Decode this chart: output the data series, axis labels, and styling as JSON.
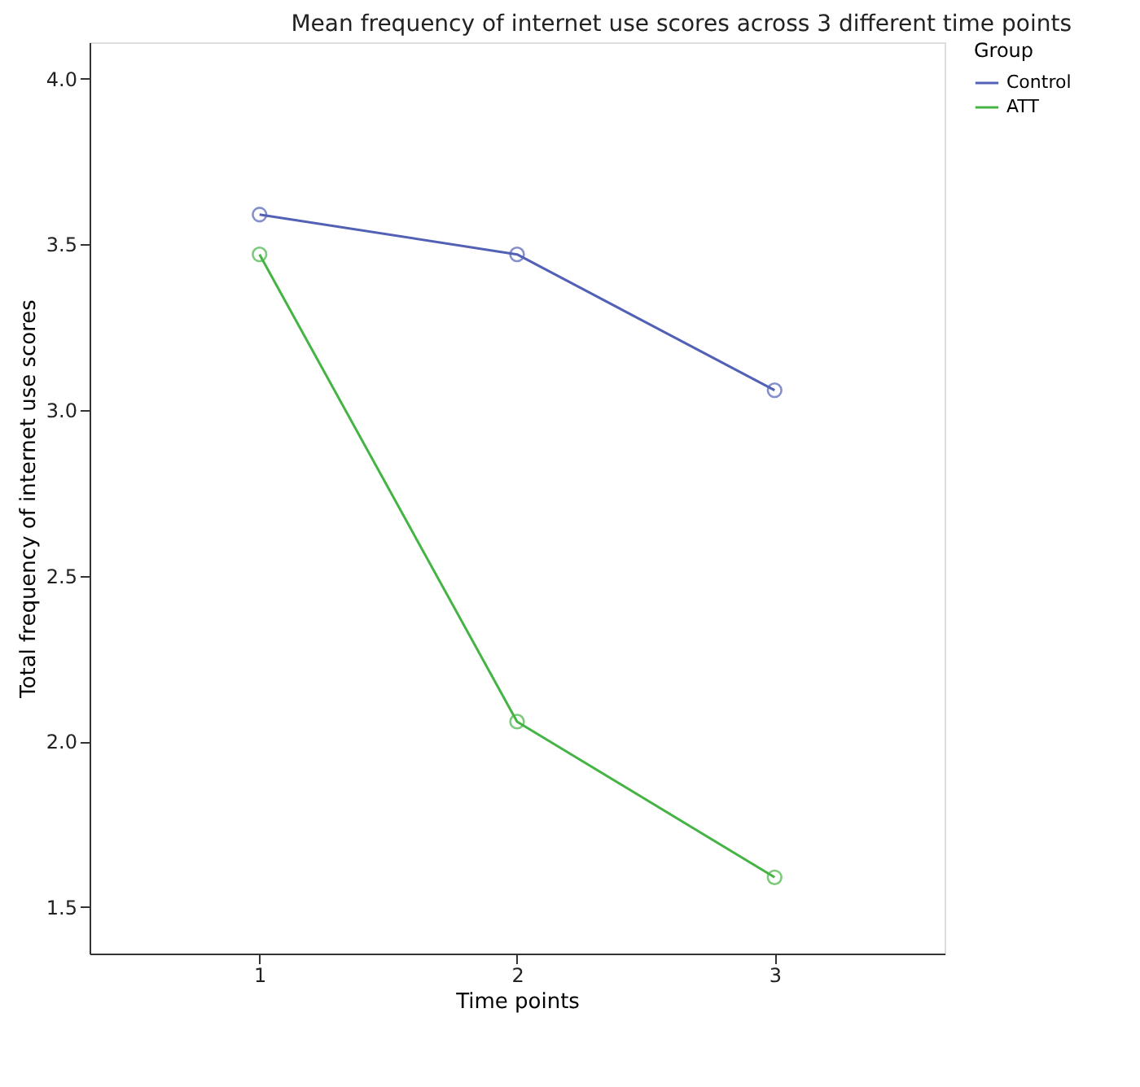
{
  "chart_data": {
    "type": "line",
    "title": "Mean frequency of internet use scores across 3 different time points",
    "xlabel": "Time points",
    "ylabel": "Total frequency of internet use scores",
    "legend_title": "Group",
    "x": [
      1,
      2,
      3
    ],
    "xlim": [
      0.34,
      3.66
    ],
    "xticks": [
      1,
      2,
      3
    ],
    "ylim": [
      1.36,
      4.11
    ],
    "yticks": [
      {
        "value": 1.5,
        "label": "1.5"
      },
      {
        "value": 2.0,
        "label": "2.0"
      },
      {
        "value": 2.5,
        "label": "2.5"
      },
      {
        "value": 3.0,
        "label": "3.0"
      },
      {
        "value": 3.5,
        "label": "3.5"
      },
      {
        "value": 4.0,
        "label": "4.0"
      }
    ],
    "series": [
      {
        "name": "Control",
        "color": "#5261b5",
        "values": [
          3.59,
          3.47,
          3.06
        ]
      },
      {
        "name": "ATT",
        "color": "#45b445",
        "values": [
          3.47,
          2.06,
          1.59
        ]
      }
    ],
    "marker": "circle",
    "line_style": "solid",
    "grid": false,
    "legend": "top right"
  }
}
